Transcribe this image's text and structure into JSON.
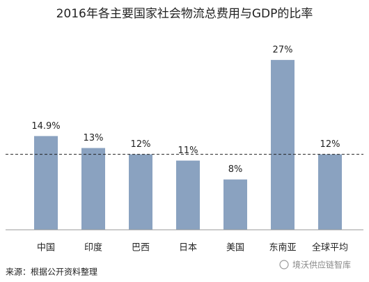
{
  "chart_data": {
    "type": "bar",
    "title": "2016年各主要国家社会物流总费用与GDP的比率",
    "categories": [
      "中国",
      "印度",
      "巴西",
      "日本",
      "美国",
      "东南亚",
      "全球平均"
    ],
    "values": [
      14.9,
      13,
      12,
      11,
      8,
      27,
      12
    ],
    "value_labels": [
      "14.9%",
      "13%",
      "12%",
      "11%",
      "8%",
      "27%",
      "12%"
    ],
    "color": "#8aa2c0",
    "ylim": [
      0,
      30
    ],
    "reference_line": 12,
    "source": "来源：根据公开资料整理",
    "watermark": "境沃供应链智库"
  }
}
